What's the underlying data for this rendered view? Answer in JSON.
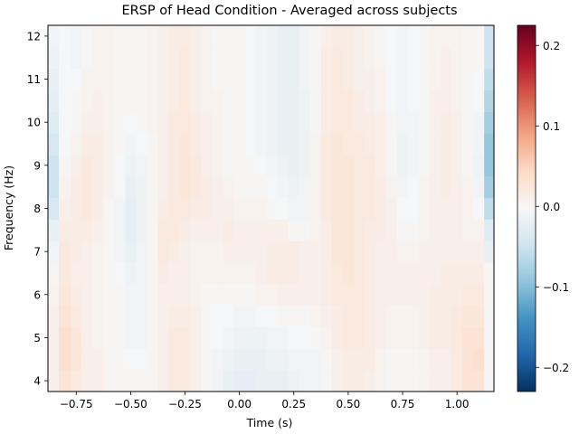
{
  "chart_data": {
    "type": "heatmap",
    "title": "ERSP of Head Condition - Averaged across subjects",
    "xlabel": "Time (s)",
    "ylabel": "Frequency (Hz)",
    "xlim": [
      -0.88,
      1.17
    ],
    "ylim": [
      3.75,
      12.25
    ],
    "x_ticks": [
      -0.75,
      -0.5,
      -0.25,
      0.0,
      0.25,
      0.5,
      0.75,
      1.0
    ],
    "x_tick_labels": [
      "−0.75",
      "−0.50",
      "−0.25",
      "0.00",
      "0.25",
      "0.50",
      "0.75",
      "1.00"
    ],
    "y_ticks": [
      4,
      5,
      6,
      7,
      8,
      9,
      10,
      11,
      12
    ],
    "y_tick_labels": [
      "4",
      "5",
      "6",
      "7",
      "8",
      "9",
      "10",
      "11",
      "12"
    ],
    "colorbar": {
      "colormap": "RdBu_r",
      "vmin": -0.23,
      "vmax": 0.225,
      "ticks": [
        -0.2,
        -0.1,
        0.0,
        0.1,
        0.2
      ],
      "tick_labels": [
        "−0.2",
        "−0.1",
        "0.0",
        "0.1",
        "0.2"
      ]
    },
    "frequencies": [
      4,
      4.5,
      5,
      5.5,
      6,
      6.5,
      7,
      7.5,
      8,
      8.5,
      9,
      9.5,
      10,
      10.5,
      11,
      11.5,
      12
    ],
    "times": [
      -0.86,
      -0.8,
      -0.75,
      -0.7,
      -0.65,
      -0.6,
      -0.55,
      -0.5,
      -0.45,
      -0.4,
      -0.35,
      -0.3,
      -0.25,
      -0.2,
      -0.15,
      -0.1,
      -0.05,
      0.0,
      0.05,
      0.1,
      0.15,
      0.2,
      0.25,
      0.3,
      0.35,
      0.4,
      0.45,
      0.5,
      0.55,
      0.6,
      0.65,
      0.7,
      0.75,
      0.8,
      0.85,
      0.9,
      0.95,
      1.0,
      1.05,
      1.1,
      1.15
    ],
    "values": [
      [
        0.01,
        0.03,
        0.02,
        0.01,
        0.01,
        0.0,
        0.0,
        0.0,
        0.0,
        0.0,
        0.01,
        0.02,
        0.02,
        0.01,
        0.0,
        -0.01,
        -0.02,
        -0.025,
        -0.025,
        -0.02,
        -0.02,
        -0.02,
        -0.015,
        -0.01,
        -0.01,
        0.0,
        0.01,
        0.015,
        0.015,
        0.01,
        0.005,
        0.0,
        0.0,
        0.0,
        0.005,
        0.01,
        0.01,
        0.02,
        0.03,
        0.03,
        0.0
      ],
      [
        0.01,
        0.035,
        0.025,
        0.01,
        0.01,
        0.0,
        0.0,
        -0.005,
        -0.005,
        0.0,
        0.01,
        0.02,
        0.02,
        0.01,
        0.0,
        -0.01,
        -0.015,
        -0.02,
        -0.02,
        -0.02,
        -0.015,
        -0.015,
        -0.01,
        -0.01,
        -0.01,
        0.0,
        0.01,
        0.015,
        0.015,
        0.015,
        0.005,
        0.0,
        0.0,
        0.0,
        0.005,
        0.01,
        0.01,
        0.02,
        0.03,
        0.035,
        0.0
      ],
      [
        0.01,
        0.035,
        0.025,
        0.01,
        0.005,
        0.0,
        0.0,
        -0.01,
        -0.01,
        0.0,
        0.01,
        0.02,
        0.02,
        0.01,
        0.0,
        -0.005,
        -0.01,
        -0.015,
        -0.015,
        -0.015,
        -0.01,
        -0.01,
        -0.005,
        -0.005,
        0.0,
        0.005,
        0.015,
        0.02,
        0.02,
        0.015,
        0.01,
        0.005,
        0.005,
        0.005,
        0.01,
        0.015,
        0.015,
        0.02,
        0.03,
        0.03,
        0.0
      ],
      [
        0.01,
        0.03,
        0.02,
        0.01,
        0.005,
        0.0,
        0.0,
        -0.01,
        -0.01,
        0.0,
        0.01,
        0.015,
        0.015,
        0.01,
        0.0,
        -0.005,
        -0.005,
        -0.01,
        -0.01,
        -0.005,
        -0.005,
        0.0,
        0.0,
        0.0,
        0.005,
        0.01,
        0.015,
        0.02,
        0.02,
        0.015,
        0.01,
        0.005,
        0.005,
        0.005,
        0.01,
        0.015,
        0.015,
        0.02,
        0.025,
        0.025,
        0.0
      ],
      [
        0.005,
        0.025,
        0.015,
        0.01,
        0.005,
        0.0,
        0.0,
        -0.01,
        -0.01,
        0.0,
        0.01,
        0.01,
        0.01,
        0.005,
        0.0,
        0.0,
        0.0,
        0.0,
        0.0,
        0.005,
        0.005,
        0.01,
        0.01,
        0.01,
        0.01,
        0.015,
        0.02,
        0.02,
        0.02,
        0.015,
        0.01,
        0.01,
        0.01,
        0.01,
        0.01,
        0.015,
        0.015,
        0.015,
        0.02,
        0.02,
        0.0
      ],
      [
        0.0,
        0.02,
        0.01,
        0.01,
        0.005,
        0.0,
        -0.005,
        -0.015,
        -0.01,
        0.0,
        0.015,
        0.01,
        0.01,
        0.005,
        0.005,
        0.005,
        0.005,
        0.005,
        0.005,
        0.01,
        0.015,
        0.015,
        0.015,
        0.01,
        0.01,
        0.015,
        0.02,
        0.025,
        0.02,
        0.015,
        0.01,
        0.01,
        0.01,
        0.01,
        0.01,
        0.01,
        0.015,
        0.015,
        0.015,
        0.015,
        0.0
      ],
      [
        -0.01,
        0.02,
        0.015,
        0.01,
        0.005,
        0.0,
        -0.01,
        -0.02,
        -0.01,
        0.0,
        0.02,
        0.015,
        0.01,
        0.005,
        0.005,
        0.005,
        0.01,
        0.01,
        0.01,
        0.01,
        0.015,
        0.015,
        0.015,
        0.01,
        0.01,
        0.015,
        0.025,
        0.025,
        0.02,
        0.015,
        0.01,
        0.01,
        0.005,
        0.005,
        0.01,
        0.01,
        0.01,
        0.01,
        0.01,
        0.01,
        -0.02
      ],
      [
        -0.02,
        0.015,
        0.015,
        0.015,
        0.01,
        0.0,
        -0.01,
        -0.025,
        -0.015,
        0.0,
        0.02,
        0.02,
        0.015,
        0.01,
        0.01,
        0.01,
        0.015,
        0.01,
        0.01,
        0.01,
        0.01,
        0.01,
        0.0,
        0.0,
        0.005,
        0.015,
        0.025,
        0.025,
        0.02,
        0.015,
        0.015,
        0.01,
        0.0,
        0.0,
        0.005,
        0.01,
        0.01,
        0.01,
        0.005,
        0.005,
        -0.03
      ],
      [
        -0.04,
        0.01,
        0.015,
        0.02,
        0.015,
        0.0,
        -0.01,
        -0.025,
        -0.015,
        0.0,
        0.015,
        0.02,
        0.02,
        0.015,
        0.015,
        0.01,
        0.01,
        0.005,
        0.005,
        0.005,
        0.0,
        -0.005,
        -0.01,
        -0.01,
        0.005,
        0.02,
        0.025,
        0.025,
        0.02,
        0.02,
        0.015,
        0.01,
        -0.005,
        -0.005,
        0.005,
        0.01,
        0.01,
        0.01,
        0.005,
        -0.005,
        -0.06
      ],
      [
        -0.05,
        0.005,
        0.015,
        0.02,
        0.015,
        0.005,
        -0.005,
        -0.02,
        -0.015,
        0.0,
        0.01,
        0.02,
        0.025,
        0.02,
        0.015,
        0.01,
        0.005,
        0.0,
        0.0,
        0.0,
        -0.005,
        -0.01,
        -0.015,
        -0.01,
        0.005,
        0.02,
        0.025,
        0.025,
        0.02,
        0.02,
        0.015,
        0.005,
        -0.01,
        -0.005,
        0.005,
        0.01,
        0.015,
        0.01,
        0.005,
        -0.01,
        -0.08
      ],
      [
        -0.05,
        0.0,
        0.01,
        0.02,
        0.015,
        0.005,
        -0.005,
        -0.015,
        -0.01,
        0.0,
        0.01,
        0.02,
        0.025,
        0.02,
        0.01,
        0.005,
        0.0,
        0.0,
        0.0,
        -0.005,
        -0.01,
        -0.015,
        -0.02,
        -0.015,
        0.005,
        0.02,
        0.025,
        0.025,
        0.02,
        0.02,
        0.01,
        0.0,
        -0.015,
        -0.01,
        0.0,
        0.01,
        0.015,
        0.01,
        0.0,
        -0.015,
        -0.09
      ],
      [
        -0.04,
        -0.005,
        0.005,
        0.015,
        0.015,
        0.005,
        0.0,
        -0.01,
        -0.005,
        0.0,
        0.01,
        0.02,
        0.025,
        0.015,
        0.01,
        0.005,
        0.0,
        0.0,
        -0.005,
        -0.01,
        -0.015,
        -0.02,
        -0.02,
        -0.015,
        0.005,
        0.02,
        0.025,
        0.02,
        0.02,
        0.015,
        0.01,
        0.0,
        -0.015,
        -0.01,
        0.0,
        0.01,
        0.015,
        0.01,
        0.0,
        -0.01,
        -0.09
      ],
      [
        -0.03,
        -0.005,
        0.0,
        0.01,
        0.01,
        0.005,
        0.0,
        -0.005,
        0.0,
        0.005,
        0.01,
        0.02,
        0.02,
        0.015,
        0.01,
        0.005,
        0.0,
        0.0,
        -0.005,
        -0.01,
        -0.015,
        -0.02,
        -0.02,
        -0.015,
        0.0,
        0.015,
        0.02,
        0.02,
        0.015,
        0.015,
        0.01,
        0.0,
        -0.01,
        -0.01,
        0.0,
        0.01,
        0.015,
        0.01,
        0.0,
        -0.01,
        -0.08
      ],
      [
        -0.025,
        -0.005,
        0.0,
        0.005,
        0.01,
        0.005,
        0.0,
        0.0,
        0.0,
        0.005,
        0.01,
        0.015,
        0.02,
        0.01,
        0.005,
        0.005,
        0.0,
        0.0,
        -0.005,
        -0.01,
        -0.015,
        -0.02,
        -0.02,
        -0.015,
        0.0,
        0.015,
        0.02,
        0.02,
        0.015,
        0.01,
        0.005,
        -0.005,
        -0.01,
        -0.005,
        0.0,
        0.01,
        0.01,
        0.005,
        0.0,
        -0.005,
        -0.07
      ],
      [
        -0.02,
        -0.005,
        -0.005,
        0.005,
        0.005,
        0.005,
        0.0,
        0.0,
        0.0,
        0.005,
        0.01,
        0.015,
        0.02,
        0.01,
        0.005,
        0.0,
        0.0,
        0.0,
        -0.005,
        -0.01,
        -0.015,
        -0.02,
        -0.02,
        -0.01,
        0.0,
        0.015,
        0.02,
        0.015,
        0.01,
        0.01,
        0.005,
        -0.005,
        -0.01,
        -0.005,
        0.0,
        0.005,
        0.01,
        0.005,
        0.0,
        -0.005,
        -0.06
      ],
      [
        -0.015,
        -0.005,
        -0.01,
        0.0,
        0.005,
        0.005,
        0.0,
        0.0,
        0.0,
        0.005,
        0.01,
        0.015,
        0.02,
        0.01,
        0.005,
        0.0,
        0.0,
        0.0,
        -0.005,
        -0.01,
        -0.015,
        -0.02,
        -0.02,
        -0.01,
        0.0,
        0.015,
        0.02,
        0.015,
        0.01,
        0.005,
        0.0,
        -0.005,
        -0.01,
        -0.005,
        0.0,
        0.005,
        0.01,
        0.005,
        0.0,
        0.0,
        -0.05
      ],
      [
        -0.01,
        -0.005,
        -0.01,
        0.0,
        0.005,
        0.005,
        0.0,
        0.0,
        0.0,
        0.005,
        0.01,
        0.015,
        0.015,
        0.01,
        0.005,
        0.0,
        0.0,
        0.0,
        -0.005,
        -0.01,
        -0.015,
        -0.02,
        -0.02,
        -0.01,
        0.0,
        0.01,
        0.015,
        0.015,
        0.01,
        0.005,
        0.0,
        -0.005,
        -0.01,
        -0.005,
        0.0,
        0.005,
        0.005,
        0.005,
        0.0,
        0.0,
        -0.05
      ]
    ]
  }
}
